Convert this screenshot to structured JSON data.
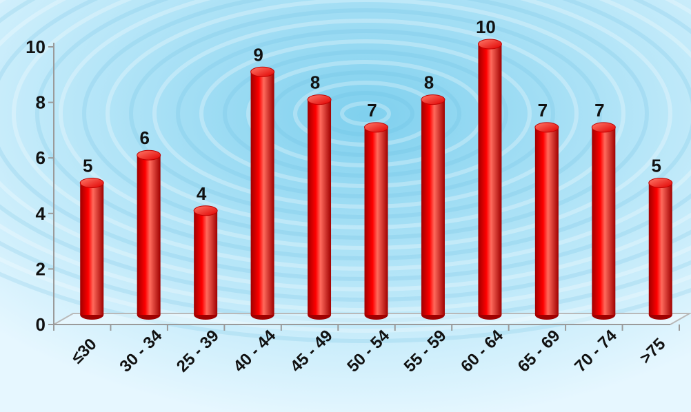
{
  "chart_data": {
    "type": "bar",
    "style": "3d-cylinder",
    "categories": [
      "≤30",
      "30 - 34",
      "25 - 39",
      "40 - 44",
      "45 - 49",
      "50 - 54",
      "55 - 59",
      "60 - 64",
      "65 - 69",
      "70 - 74",
      ">75"
    ],
    "values": [
      5,
      6,
      4,
      9,
      8,
      7,
      8,
      10,
      7,
      7,
      5
    ],
    "ylim": [
      0,
      10
    ],
    "yticks": [
      0,
      2,
      4,
      6,
      8,
      10
    ],
    "data_labels": true,
    "grid": false,
    "legend": "none",
    "colors": {
      "bar": "#ff0000",
      "bar_dark": "#a00000",
      "bar_light": "#ff6a5c",
      "background_center": "#7fd0ee",
      "background_edge": "#e6f7ff"
    }
  }
}
